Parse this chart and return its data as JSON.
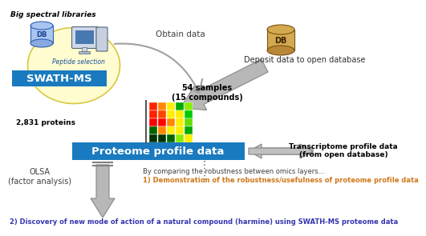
{
  "bg_color": "#ffffff",
  "title_top": "Big spectral libraries",
  "obtain_data_text": "Obtain data",
  "peptide_selection_text": "Peptide selection",
  "swath_ms_text": "SWATH-MS",
  "samples_text": "54 samples\n(15 compounds)",
  "proteins_text": "2,831 proteins",
  "deposit_text": "Deposit data to open database",
  "proteome_box_text": "Proteome profile data",
  "transcriptome_text": "Transcriptome profile data\n(from open database)",
  "olsa_text": "OLSA\n(factor analysis)",
  "comparing_text": "By comparing the robustness between omics layers...",
  "demonstration_text": "1) Demonstration of the robustness/usefulness of proteome profile data",
  "discovery_text": "2) Discovery of new mode of action of a natural compound (harmine) using SWATH-MS proteome data",
  "swath_box_color": "#1a7abf",
  "proteome_box_color": "#1a7abf",
  "swath_text_color": "#ffffff",
  "proteome_text_color": "#ffffff",
  "orange_text_color": "#d07818",
  "discovery_text_color": "#3535b0",
  "arrow_color": "#a0a0a0",
  "heatmap_data": [
    [
      "#ff2200",
      "#ff8800",
      "#ffee00",
      "#00aa00",
      "#88ee00"
    ],
    [
      "#ff2200",
      "#ff4400",
      "#ffee00",
      "#ffee00",
      "#00cc00"
    ],
    [
      "#ff0000",
      "#ff0000",
      "#ff8800",
      "#ffee00",
      "#66dd00"
    ],
    [
      "#006600",
      "#ff8800",
      "#ffee00",
      "#ffee00",
      "#00aa00"
    ],
    [
      "#003300",
      "#003300",
      "#006600",
      "#88ee00",
      "#ffee00"
    ]
  ]
}
